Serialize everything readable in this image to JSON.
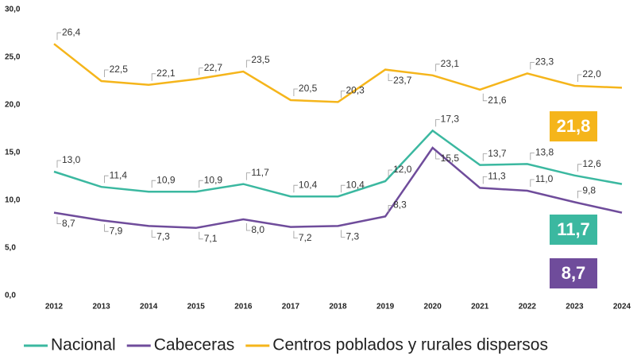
{
  "chart_data": {
    "type": "line",
    "categories": [
      "2012",
      "2013",
      "2014",
      "2015",
      "2016",
      "2017",
      "2018",
      "2019",
      "2020",
      "2021",
      "2022",
      "2023",
      "2024"
    ],
    "series": [
      {
        "name": "Nacional",
        "color": "#3bb8a0",
        "values": [
          13.0,
          11.4,
          10.9,
          10.9,
          11.7,
          10.4,
          10.4,
          12.0,
          17.3,
          13.7,
          13.8,
          12.6,
          11.7
        ],
        "value_labels": [
          "13,0",
          "11,4",
          "10,9",
          "10,9",
          "11,7",
          "10,4",
          "10,4",
          "12,0",
          "17,3",
          "13,7",
          "13,8",
          "12,6",
          "11,7"
        ]
      },
      {
        "name": "Cabeceras",
        "color": "#6f4c9b",
        "values": [
          8.7,
          7.9,
          7.3,
          7.1,
          8.0,
          7.2,
          7.3,
          8.3,
          15.5,
          11.3,
          11.0,
          9.8,
          8.7
        ],
        "value_labels": [
          "8,7",
          "7,9",
          "7,3",
          "7,1",
          "8,0",
          "7,2",
          "7,3",
          "8,3",
          "15,5",
          "11,3",
          "11,0",
          "9,8",
          "8,7"
        ]
      },
      {
        "name": "Centros poblados y rurales dispersos",
        "color": "#f5b51b",
        "values": [
          26.4,
          22.5,
          22.1,
          22.7,
          23.5,
          20.5,
          20.3,
          23.7,
          23.1,
          21.6,
          23.3,
          22.0,
          21.8
        ],
        "value_labels": [
          "26,4",
          "22,5",
          "22,1",
          "22,7",
          "23,5",
          "20,5",
          "20,3",
          "23,7",
          "23,1",
          "21,6",
          "23,3",
          "22,0",
          "21,8"
        ]
      }
    ],
    "ylim": [
      0,
      30
    ],
    "yticks": [
      {
        "value": 0,
        "label": "0,0"
      },
      {
        "value": 5,
        "label": "5,0"
      },
      {
        "value": 10,
        "label": "10,0"
      },
      {
        "value": 15,
        "label": "15,0"
      },
      {
        "value": 20,
        "label": "20,0"
      },
      {
        "value": 25,
        "label": "25,0"
      },
      {
        "value": 30,
        "label": "30,0"
      }
    ],
    "grid": false,
    "legend": "bottom"
  }
}
